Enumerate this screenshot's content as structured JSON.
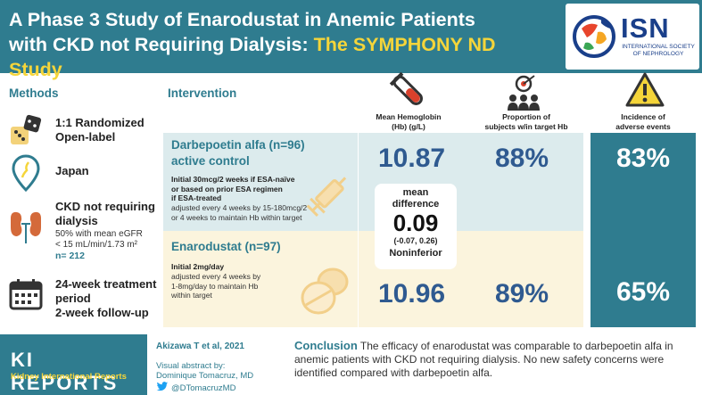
{
  "header": {
    "title_line1": "A Phase 3 Study of Enarodustat in Anemic Patients",
    "title_line2_a": "with CKD not Requiring Dialysis: ",
    "title_line2_b": "The SYMPHONY ND Study",
    "logo_text": "ISN",
    "logo_sub": "INTERNATIONAL SOCIETY OF NEPHROLOGY"
  },
  "methods": {
    "heading": "Methods",
    "randomized": "1:1 Randomized",
    "open_label": "Open-label",
    "country": "Japan",
    "ckd_title_1": "CKD not requiring",
    "ckd_title_2": "dialysis",
    "ckd_desc_1": "50% with mean eGFR",
    "ckd_desc_2": "< 15 mL/min/1.73 m²",
    "n": "n= 212",
    "duration_1": "24-week treatment",
    "duration_2": "period",
    "duration_3": "2-week follow-up"
  },
  "intervention": {
    "heading": "Intervention",
    "col_hb_1": "Mean Hemoglobin",
    "col_hb_2": "(Hb) (g/L)",
    "col_prop_1": "Proportion of",
    "col_prop_2": "subjects w/in target Hb",
    "col_ae_1": "Incidence of",
    "col_ae_2": "adverse events",
    "darbe": {
      "title_1": "Darbepoetin alfa (n=96)",
      "title_2": "active control",
      "bold_1": "Initial 30mcg/2 weeks if ESA-naïve",
      "bold_2": "or based on prior ESA regimen",
      "bold_3": "if ESA-treated",
      "text_1": "adjusted every 4 weeks by 15-180mcg/2",
      "text_2": "or 4 weeks to maintain Hb within target",
      "hb": "10.87",
      "prop": "88%",
      "ae": "83%"
    },
    "enaro": {
      "title": "Enarodustat (n=97)",
      "bold_1": "Initial 2mg/day",
      "text_1": "adjusted every 4 weeks  by",
      "text_2": "1-8mg/day to maintain Hb",
      "text_3": "within target",
      "hb": "10.96",
      "prop": "89%",
      "ae": "65%"
    },
    "diff": {
      "label_1": "mean",
      "label_2": "difference",
      "value": "0.09",
      "ci": "(-0.07, 0.26)",
      "verdict": "Noninferior"
    }
  },
  "footer": {
    "brand": "KI REPORTS",
    "brand_sub": "Kidney International Reports",
    "citation": "Akizawa T et al, 2021",
    "credit_1": "Visual abstract by:",
    "credit_2": "Dominique Tomacruz, MD",
    "twitter": "@DTomacruzMD",
    "conclusion_label": "Conclusion",
    "conclusion_text": " The efficacy of enarodustat was comparable to darbepoetin alfa in anemic patients with CKD not requiring dialysis. No new safety concerns were identified compared with darbepoetin alfa."
  },
  "colors": {
    "teal": "#2f7c8f",
    "yellow": "#f5d53a",
    "navy": "#2f5a90"
  }
}
